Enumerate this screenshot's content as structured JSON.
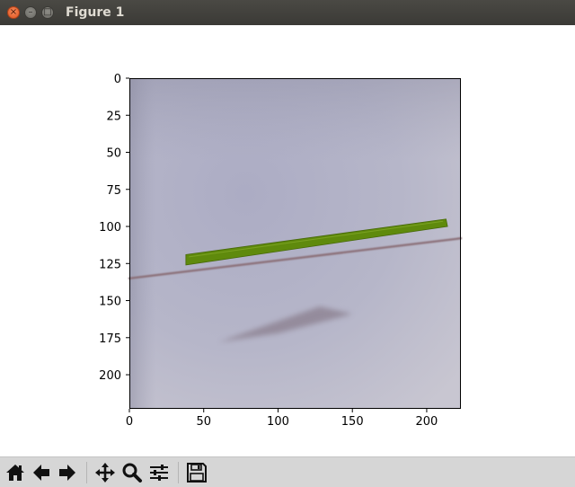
{
  "window": {
    "title": "Figure 1"
  },
  "chart_data": {
    "type": "image",
    "xlim": [
      0,
      223
    ],
    "ylim": [
      223,
      0
    ],
    "x_ticks": [
      0,
      50,
      100,
      150,
      200
    ],
    "y_ticks": [
      0,
      25,
      50,
      75,
      100,
      125,
      150,
      175,
      200
    ],
    "x_tick_labels": [
      "0",
      "50",
      "100",
      "150",
      "200"
    ],
    "y_tick_labels": [
      "0",
      "25",
      "50",
      "75",
      "100",
      "125",
      "150",
      "175",
      "200"
    ],
    "grid": false,
    "colors": {
      "background": "#b5b5c8",
      "stick": "#5f8a0c",
      "line": "#8b6f78"
    }
  },
  "toolbar": {
    "icons": [
      "home-icon",
      "back-arrow-icon",
      "forward-arrow-icon",
      "pan-icon",
      "zoom-icon",
      "configure-subplots-icon",
      "save-icon"
    ]
  }
}
